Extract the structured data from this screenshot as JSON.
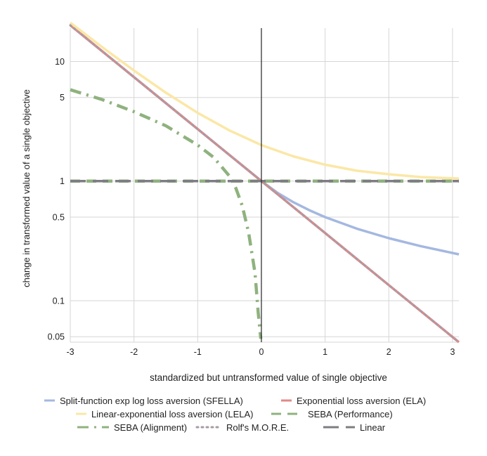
{
  "chart_data": {
    "type": "line",
    "title": "",
    "xlabel": "standardized but untransformed value of  single objective",
    "ylabel": "change in transformed value of a single objective",
    "xlim": [
      -3,
      3.1
    ],
    "ylim": [
      0.045,
      19
    ],
    "yscale": "log",
    "grid": true,
    "legend_position": "bottom",
    "x_ticks": [
      -3,
      -2,
      -1,
      0,
      1,
      2,
      3
    ],
    "x_tick_labels": [
      "-3",
      "-2",
      "-1",
      "0",
      "1",
      "2",
      "3"
    ],
    "y_ticks": [
      0.05,
      0.1,
      0.5,
      1,
      5,
      10
    ],
    "y_tick_labels": [
      "0.05",
      "0.1",
      "0.5",
      "1",
      "5",
      "10"
    ],
    "series": [
      {
        "name": "Split-function exp log loss aversion (SFELLA)",
        "color": "#a4b8e0",
        "dash": "solid",
        "x": [
          -3,
          -2.5,
          -2,
          -1.5,
          -1,
          -0.5,
          0,
          0.25,
          0.5,
          0.75,
          1,
          1.5,
          2,
          2.5,
          3.1
        ],
        "y": [
          20.09,
          12.18,
          7.39,
          4.48,
          2.72,
          1.65,
          1.0,
          0.8,
          0.667,
          0.571,
          0.5,
          0.4,
          0.333,
          0.286,
          0.244
        ]
      },
      {
        "name": "Exponential loss aversion (ELA)",
        "color": "#e28a86",
        "dash": "solid",
        "x": [
          -3,
          -2,
          -1,
          0,
          1,
          2,
          3.1
        ],
        "y": [
          20.09,
          7.39,
          2.72,
          1.0,
          0.368,
          0.135,
          0.045
        ]
      },
      {
        "name": "Linear-exponential loss aversion (LELA)",
        "color": "#fbe7a6",
        "dash": "solid",
        "x": [
          -3,
          -2.5,
          -2,
          -1.5,
          -1,
          -0.5,
          0,
          0.5,
          1,
          1.5,
          2,
          2.5,
          3.1
        ],
        "y": [
          21.09,
          13.18,
          8.39,
          5.48,
          3.72,
          2.65,
          2.0,
          1.61,
          1.37,
          1.22,
          1.14,
          1.08,
          1.05
        ]
      },
      {
        "name": "SEBA (Performance)",
        "color": "#8fb27e",
        "dash": "dash",
        "x": [
          -3,
          3.1
        ],
        "y": [
          1.0,
          1.0
        ]
      },
      {
        "name": "SEBA (Alignment)",
        "color": "#8fb27e",
        "dash": "dashdot",
        "x": [
          -3,
          -2.5,
          -2,
          -1.5,
          -1,
          -0.75,
          -0.5,
          -0.4,
          -0.3,
          -0.2,
          -0.1,
          -0.05,
          -0.01
        ],
        "y": [
          5.8,
          4.8,
          3.8,
          2.9,
          2.0,
          1.58,
          1.1,
          0.87,
          0.62,
          0.37,
          0.17,
          0.08,
          0.048
        ]
      },
      {
        "name": "Rolf's M.O.R.E.",
        "color": "#a89aa6",
        "dash": "dot",
        "x": [
          -3,
          -2,
          -1,
          0,
          1,
          2,
          3.1
        ],
        "y": [
          20.09,
          7.39,
          2.72,
          1.0,
          0.368,
          0.135,
          0.045
        ]
      },
      {
        "name": "Linear",
        "color": "#7d7d83",
        "dash": "longdash",
        "x": [
          -3,
          3.1
        ],
        "y": [
          1.0,
          1.0
        ]
      }
    ]
  },
  "colors": {
    "grid": "#d6d6d6",
    "axis": "#222222"
  }
}
